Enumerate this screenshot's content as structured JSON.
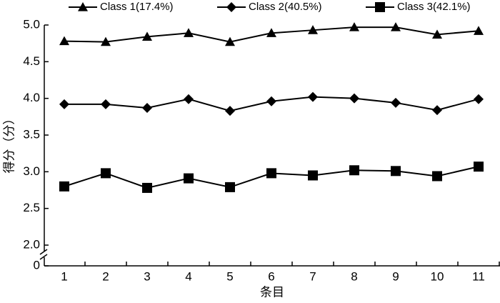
{
  "chart_data": {
    "type": "line",
    "categories": [
      "1",
      "2",
      "3",
      "4",
      "5",
      "6",
      "7",
      "8",
      "9",
      "10",
      "11"
    ],
    "series": [
      {
        "name": "Class 1(17.4%)",
        "color": "#000000",
        "marker": "triangle",
        "values": [
          4.78,
          4.77,
          4.84,
          4.89,
          4.77,
          4.89,
          4.93,
          4.97,
          4.97,
          4.87,
          4.92
        ]
      },
      {
        "name": "Class 2(40.5%)",
        "color": "#000000",
        "marker": "diamond",
        "values": [
          3.92,
          3.92,
          3.87,
          3.99,
          3.83,
          3.96,
          4.02,
          4.0,
          3.94,
          3.84,
          3.99
        ]
      },
      {
        "name": "Class 3(42.1%)",
        "color": "#000000",
        "marker": "square",
        "values": [
          2.8,
          2.98,
          2.78,
          2.91,
          2.79,
          2.98,
          2.95,
          3.02,
          3.01,
          2.94,
          3.07
        ]
      }
    ],
    "ylim": [
      0,
      5.0
    ],
    "yticks": [
      0,
      {
        "value": 2,
        "label": "2.0"
      },
      2.5,
      {
        "value": 3,
        "label": "3.0"
      },
      3.5,
      {
        "value": 4,
        "label": "4.0"
      },
      4.5,
      {
        "value": 5,
        "label": "5.0"
      }
    ],
    "y_break": true,
    "y_label": "得分（分）",
    "x_label": "条目",
    "legend": "top"
  }
}
